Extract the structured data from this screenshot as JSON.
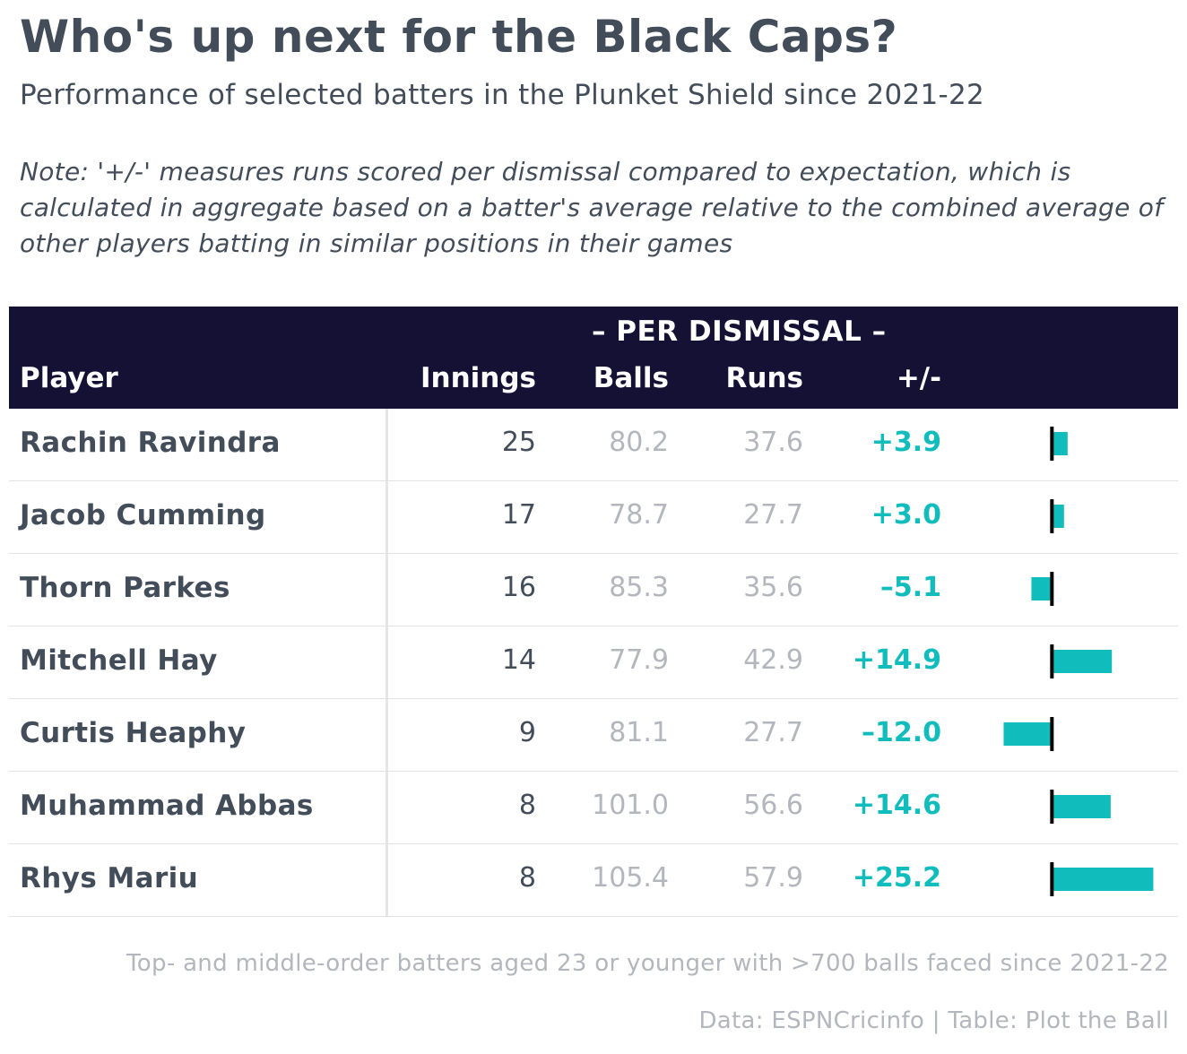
{
  "header": {
    "title": "Who's up next for the Black Caps?",
    "subtitle": "Performance of selected batters in the Plunket Shield since 2021-22",
    "note": "Note: '+/-' measures runs scored per dismissal compared to expectation, which is calculated in aggregate based on a batter's average relative to the combined average of other players batting in similar positions in their games"
  },
  "columns": {
    "spanner": "– PER DISMISSAL –",
    "player": "Player",
    "innings": "Innings",
    "balls": "Balls",
    "runs": "Runs",
    "plus_minus": "+/-"
  },
  "rows": [
    {
      "player": "Rachin Ravindra",
      "innings": "25",
      "balls": "80.2",
      "runs": "37.6",
      "plus_minus": "+3.9"
    },
    {
      "player": "Jacob Cumming",
      "innings": "17",
      "balls": "78.7",
      "runs": "27.7",
      "plus_minus": "+3.0"
    },
    {
      "player": "Thorn Parkes",
      "innings": "16",
      "balls": "85.3",
      "runs": "35.6",
      "plus_minus": "–5.1"
    },
    {
      "player": "Mitchell Hay",
      "innings": "14",
      "balls": "77.9",
      "runs": "42.9",
      "plus_minus": "+14.9"
    },
    {
      "player": "Curtis Heaphy",
      "innings": "9",
      "balls": "81.1",
      "runs": "27.7",
      "plus_minus": "–12.0"
    },
    {
      "player": "Muhammad Abbas",
      "innings": "8",
      "balls": "101.0",
      "runs": "56.6",
      "plus_minus": "+14.6"
    },
    {
      "player": "Rhys Mariu",
      "innings": "8",
      "balls": "105.4",
      "runs": "57.9",
      "plus_minus": "+25.2"
    }
  ],
  "footer": {
    "caption": "Top- and middle-order batters aged 23 or younger with >700 balls faced since 2021-22",
    "source": "Data: ESPNCricinfo | Table: Plot the Ball"
  },
  "colors": {
    "header_bg": "#151135",
    "accent": "#10bcbc",
    "text": "#434d5a",
    "muted": "#b3b6bc"
  },
  "chart_data": {
    "type": "table",
    "columns": [
      "Player",
      "Innings",
      "Balls",
      "Runs",
      "+/-"
    ],
    "spanner": "– PER DISMISSAL –",
    "series": [
      {
        "name": "+/-",
        "values": [
          3.9,
          3.0,
          -5.1,
          14.9,
          -12.0,
          14.6,
          25.2
        ]
      }
    ],
    "categories": [
      "Rachin Ravindra",
      "Jacob Cumming",
      "Thorn Parkes",
      "Mitchell Hay",
      "Curtis Heaphy",
      "Muhammad Abbas",
      "Rhys Mariu"
    ],
    "bar_xlim": [
      -15,
      30
    ]
  }
}
